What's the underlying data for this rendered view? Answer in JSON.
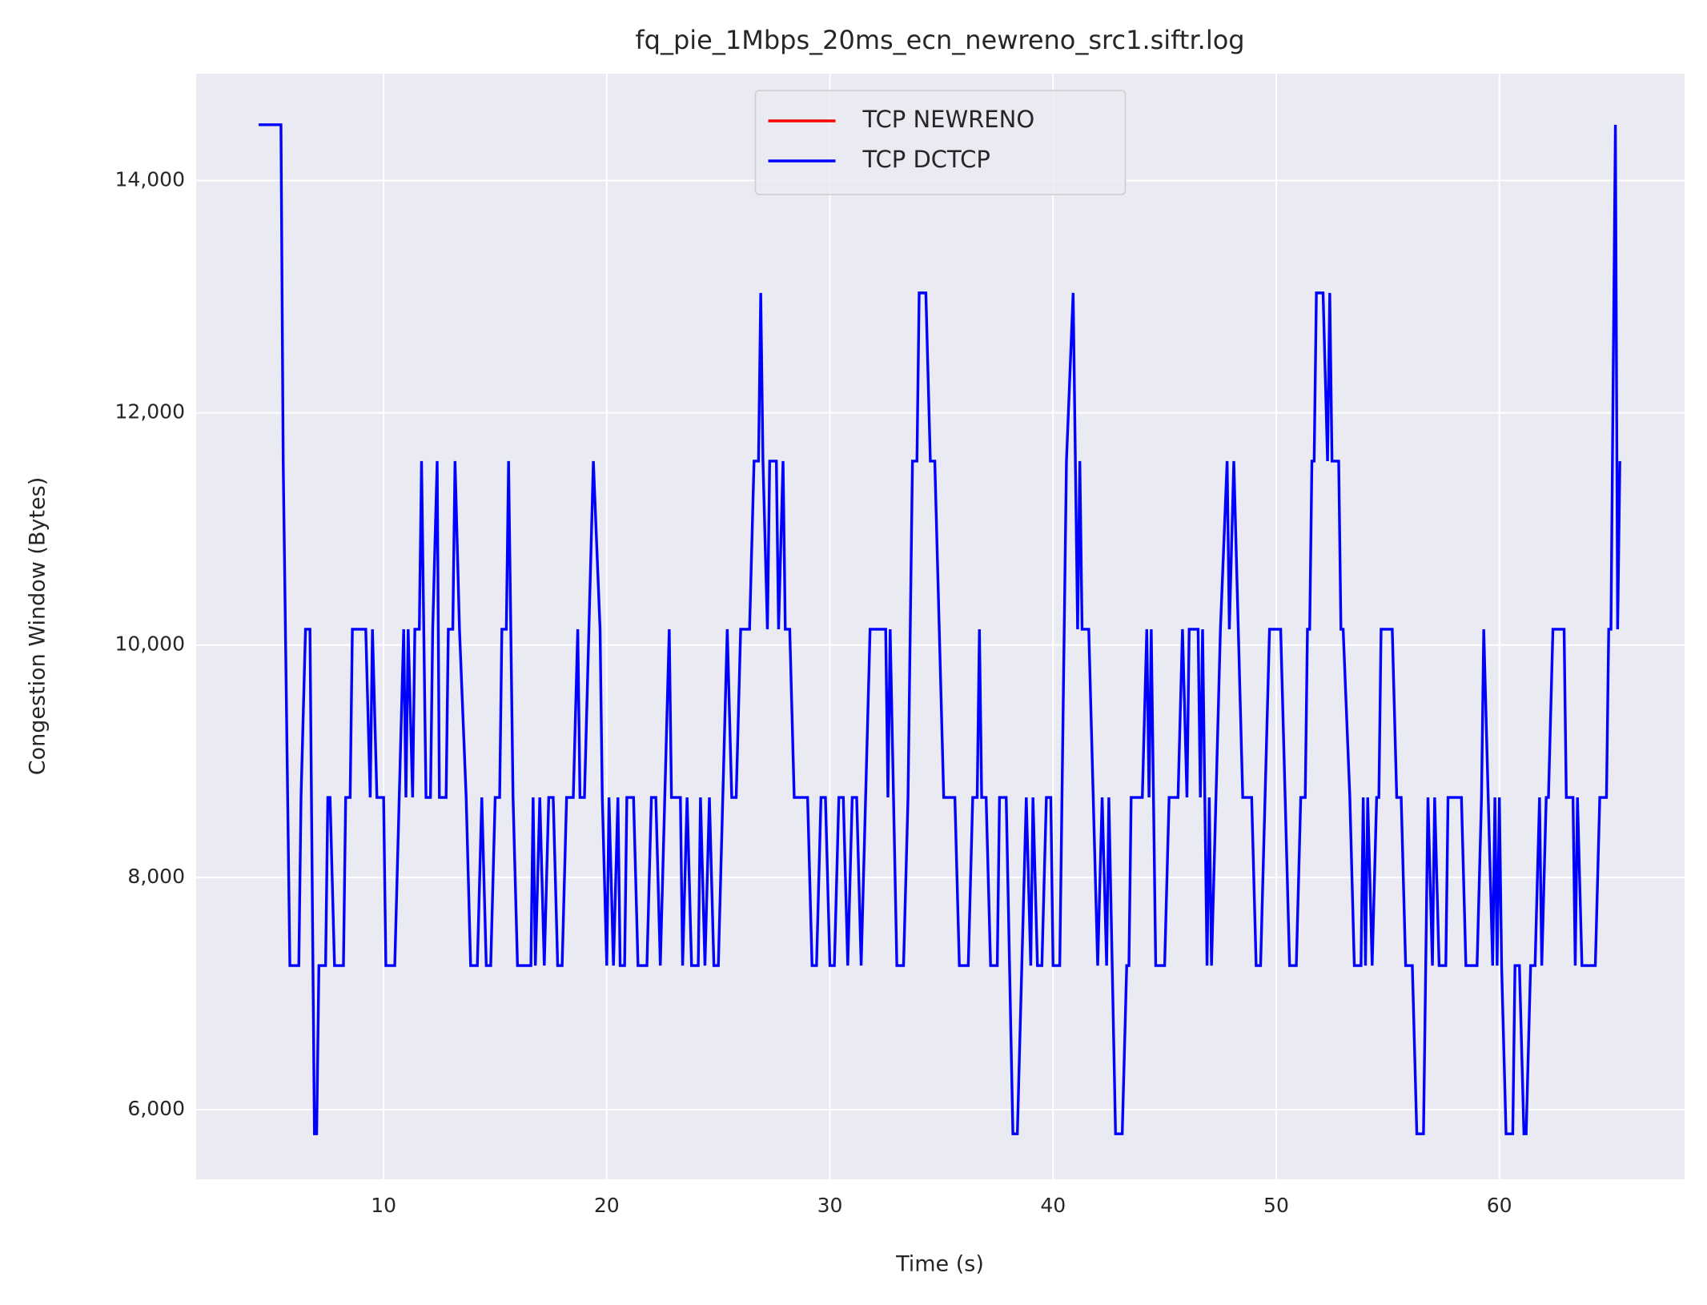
{
  "chart_data": {
    "type": "line",
    "title": "fq_pie_1Mbps_20ms_ecn_newreno_src1.siftr.log",
    "x_label": "Time (s)",
    "y_label": "Congestion Window (Bytes)",
    "xlim": [
      1.6,
      68.3
    ],
    "ylim": [
      5400,
      14920
    ],
    "xticks": [
      10,
      20,
      30,
      40,
      50,
      60
    ],
    "yticks": [
      {
        "value": 6000,
        "label": "6,000"
      },
      {
        "value": 8000,
        "label": "8,000"
      },
      {
        "value": 10000,
        "label": "10,000"
      },
      {
        "value": 12000,
        "label": "12,000"
      },
      {
        "value": 14000,
        "label": "14,000"
      }
    ],
    "grid": true,
    "legend": "upper center",
    "series": [
      {
        "name": "TCP NEWRENO",
        "color": "#ff0000",
        "x": [],
        "values": []
      },
      {
        "name": "TCP DCTCP",
        "color": "#0000ff",
        "x": [
          4.4,
          5.4,
          5.5,
          5.8,
          6.2,
          6.3,
          6.5,
          6.7,
          6.9,
          7.0,
          7.1,
          7.4,
          7.5,
          7.6,
          7.8,
          8.2,
          8.3,
          8.5,
          8.6,
          9.2,
          9.4,
          9.5,
          9.7,
          10.0,
          10.1,
          10.5,
          10.7,
          10.9,
          11.0,
          11.1,
          11.3,
          11.4,
          11.6,
          11.7,
          11.9,
          12.1,
          12.2,
          12.4,
          12.5,
          12.8,
          12.9,
          13.1,
          13.2,
          13.4,
          13.7,
          13.9,
          14.2,
          14.4,
          14.6,
          14.8,
          15.0,
          15.2,
          15.3,
          15.5,
          15.6,
          15.8,
          16.0,
          16.6,
          16.7,
          16.8,
          17.0,
          17.2,
          17.4,
          17.6,
          17.8,
          18.0,
          18.2,
          18.5,
          18.7,
          18.8,
          19.0,
          19.2,
          19.4,
          19.7,
          19.8,
          20.0,
          20.1,
          20.3,
          20.5,
          20.6,
          20.8,
          20.9,
          21.2,
          21.4,
          21.8,
          22.0,
          22.2,
          22.4,
          22.6,
          22.8,
          22.9,
          23.3,
          23.4,
          23.6,
          23.8,
          24.1,
          24.2,
          24.4,
          24.6,
          24.8,
          25.0,
          25.2,
          25.4,
          25.6,
          25.8,
          26.0,
          26.4,
          26.6,
          26.8,
          26.9,
          27.0,
          27.2,
          27.3,
          27.6,
          27.7,
          27.9,
          28.0,
          28.2,
          28.4,
          29.0,
          29.2,
          29.4,
          29.6,
          29.8,
          30.0,
          30.2,
          30.4,
          30.6,
          30.8,
          31.0,
          31.2,
          31.4,
          31.6,
          31.8,
          32.5,
          32.6,
          32.7,
          33.0,
          33.3,
          33.5,
          33.6,
          33.7,
          33.9,
          34.0,
          34.3,
          34.5,
          34.7,
          34.9,
          35.1,
          35.6,
          35.8,
          36.2,
          36.4,
          36.6,
          36.7,
          36.8,
          37.0,
          37.2,
          37.5,
          37.6,
          37.9,
          38.2,
          38.4,
          38.6,
          38.8,
          39.0,
          39.1,
          39.3,
          39.5,
          39.7,
          39.9,
          40.0,
          40.3,
          40.5,
          40.6,
          40.9,
          41.1,
          41.2,
          41.3,
          41.6,
          41.8,
          42.0,
          42.2,
          42.4,
          42.5,
          42.8,
          43.1,
          43.3,
          43.4,
          43.5,
          44.0,
          44.2,
          44.3,
          44.4,
          44.6,
          45.0,
          45.2,
          45.6,
          45.8,
          46.0,
          46.1,
          46.5,
          46.6,
          46.7,
          46.9,
          47.0,
          47.1,
          47.3,
          47.5,
          47.8,
          47.9,
          48.1,
          48.3,
          48.5,
          48.9,
          49.1,
          49.3,
          49.5,
          49.7,
          50.2,
          50.4,
          50.6,
          50.9,
          51.1,
          51.3,
          51.4,
          51.5,
          51.6,
          51.7,
          51.8,
          52.1,
          52.3,
          52.4,
          52.5,
          52.8,
          52.9,
          53.0,
          53.3,
          53.5,
          53.8,
          53.9,
          54.0,
          54.1,
          54.3,
          54.5,
          54.6,
          54.7,
          55.2,
          55.4,
          55.6,
          55.8,
          56.1,
          56.3,
          56.6,
          56.7,
          56.8,
          57.0,
          57.1,
          57.3,
          57.6,
          57.7,
          58.3,
          58.5,
          59.0,
          59.2,
          59.3,
          59.5,
          59.7,
          59.8,
          59.9,
          60.0,
          60.1,
          60.3,
          60.6,
          60.7,
          60.9,
          61.1,
          61.2,
          61.4,
          61.6,
          61.8,
          61.9,
          62.1,
          62.2,
          62.4,
          62.9,
          63.0,
          63.3,
          63.4,
          63.5,
          63.7,
          64.3,
          64.5,
          64.8,
          64.9,
          65.0,
          65.2,
          65.3,
          65.4
        ],
        "values": [
          14480,
          14480,
          11584,
          7240,
          7240,
          8688,
          10136,
          10136,
          5792,
          5792,
          7240,
          7240,
          8688,
          8688,
          7240,
          7240,
          8688,
          8688,
          10136,
          10136,
          8688,
          10136,
          8688,
          8688,
          7240,
          7240,
          8688,
          10136,
          8688,
          10136,
          8688,
          10136,
          10136,
          11584,
          8688,
          8688,
          10136,
          11584,
          8688,
          8688,
          10136,
          10136,
          11584,
          10136,
          8688,
          7240,
          7240,
          8688,
          7240,
          7240,
          8688,
          8688,
          10136,
          10136,
          11584,
          8688,
          7240,
          7240,
          8688,
          7240,
          8688,
          7240,
          8688,
          8688,
          7240,
          7240,
          8688,
          8688,
          10136,
          8688,
          8688,
          10136,
          11584,
          10136,
          8688,
          7240,
          8688,
          7240,
          8688,
          7240,
          7240,
          8688,
          8688,
          7240,
          7240,
          8688,
          8688,
          7240,
          8688,
          10136,
          8688,
          8688,
          7240,
          8688,
          7240,
          7240,
          8688,
          7240,
          8688,
          7240,
          7240,
          8688,
          10136,
          8688,
          8688,
          10136,
          10136,
          11584,
          11584,
          13032,
          11584,
          10136,
          11584,
          11584,
          10136,
          11584,
          10136,
          10136,
          8688,
          8688,
          7240,
          7240,
          8688,
          8688,
          7240,
          7240,
          8688,
          8688,
          7240,
          8688,
          8688,
          7240,
          8688,
          10136,
          10136,
          8688,
          10136,
          7240,
          7240,
          8688,
          10136,
          11584,
          11584,
          13032,
          13032,
          11584,
          11584,
          10136,
          8688,
          8688,
          7240,
          7240,
          8688,
          8688,
          10136,
          8688,
          8688,
          7240,
          7240,
          8688,
          8688,
          5792,
          5792,
          7240,
          8688,
          7240,
          8688,
          7240,
          7240,
          8688,
          8688,
          7240,
          7240,
          10136,
          11584,
          13032,
          10136,
          11584,
          10136,
          10136,
          8688,
          7240,
          8688,
          7240,
          8688,
          5792,
          5792,
          7240,
          7240,
          8688,
          8688,
          10136,
          8688,
          10136,
          7240,
          7240,
          8688,
          8688,
          10136,
          8688,
          10136,
          10136,
          8688,
          10136,
          7240,
          8688,
          7240,
          8688,
          10136,
          11584,
          10136,
          11584,
          10136,
          8688,
          8688,
          7240,
          7240,
          8688,
          10136,
          10136,
          8688,
          7240,
          7240,
          8688,
          8688,
          10136,
          10136,
          11584,
          11584,
          13032,
          13032,
          11584,
          13032,
          11584,
          11584,
          10136,
          10136,
          8688,
          7240,
          7240,
          8688,
          7240,
          8688,
          7240,
          8688,
          8688,
          10136,
          10136,
          8688,
          8688,
          7240,
          7240,
          5792,
          5792,
          7240,
          8688,
          7240,
          8688,
          7240,
          7240,
          8688,
          8688,
          7240,
          7240,
          8688,
          10136,
          8688,
          7240,
          8688,
          7240,
          8688,
          7240,
          5792,
          5792,
          7240,
          7240,
          5792,
          5792,
          7240,
          7240,
          8688,
          7240,
          8688,
          8688,
          10136,
          10136,
          8688,
          8688,
          7240,
          8688,
          7240,
          7240,
          8688,
          8688,
          10136,
          10136,
          14480,
          10136,
          11584
        ]
      }
    ]
  }
}
